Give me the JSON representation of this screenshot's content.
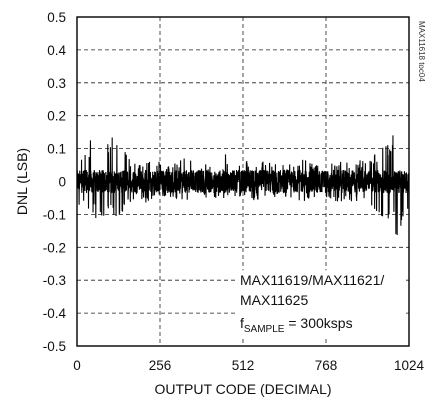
{
  "chart_data": {
    "type": "line",
    "title": "",
    "xlabel": "OUTPUT CODE (DECIMAL)",
    "ylabel": "DNL (LSB)",
    "xlim": [
      0,
      1024
    ],
    "ylim": [
      -0.5,
      0.5
    ],
    "x_ticks": [
      "0",
      "256",
      "512",
      "768",
      "1024"
    ],
    "y_ticks": [
      "0.5",
      "0.4",
      "0.3",
      "0.2",
      "0.1",
      "0",
      "-0.1",
      "-0.2",
      "-0.3",
      "-0.4",
      "-0.5"
    ],
    "grid": true,
    "annotation": {
      "line1": "MAX11619/MAX11621/",
      "line2": "MAX11625",
      "f_main": "f",
      "f_sub": "SAMPLE",
      "f_value": " = 300ksps"
    },
    "side_code": "MAX11618 toc04",
    "series": [
      {
        "envelope": {
          "x": [
            0,
            32,
            64,
            96,
            128,
            160,
            192,
            224,
            256,
            288,
            320,
            352,
            384,
            416,
            448,
            480,
            512,
            544,
            576,
            608,
            640,
            672,
            704,
            736,
            768,
            800,
            832,
            864,
            896,
            928,
            960,
            992,
            1024
          ],
          "upper": [
            0.1,
            0.12,
            0.14,
            0.14,
            0.13,
            0.08,
            0.06,
            0.07,
            0.06,
            0.05,
            0.07,
            0.07,
            0.06,
            0.06,
            0.1,
            0.06,
            0.06,
            0.07,
            0.06,
            0.06,
            0.05,
            0.06,
            0.07,
            0.05,
            0.05,
            0.06,
            0.06,
            0.06,
            0.08,
            0.1,
            0.12,
            0.17,
            0.1
          ],
          "lower": [
            -0.09,
            -0.1,
            -0.12,
            -0.11,
            -0.11,
            -0.07,
            -0.06,
            -0.07,
            -0.05,
            -0.05,
            -0.06,
            -0.06,
            -0.05,
            -0.05,
            -0.06,
            -0.05,
            -0.05,
            -0.06,
            -0.06,
            -0.05,
            -0.05,
            -0.06,
            -0.06,
            -0.05,
            -0.05,
            -0.07,
            -0.06,
            -0.06,
            -0.07,
            -0.1,
            -0.12,
            -0.18,
            -0.11
          ]
        }
      }
    ]
  }
}
